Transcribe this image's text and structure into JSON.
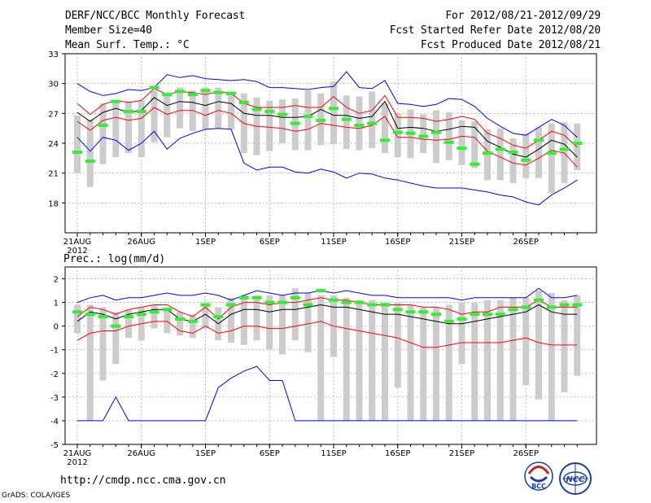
{
  "header": {
    "title": "DERF/NCC/BCC Monthly Forecast",
    "member_size": "Member Size=40",
    "variable": "Mean Surf. Temp.: °C",
    "period": "For 2012/08/21-2012/09/29",
    "refer_date": "Fcst Started Refer Date 2012/08/20",
    "produced_date": "Fcst Produced Date 2012/08/21"
  },
  "precip_label": "Prec.: log(mm/d)",
  "footer": {
    "url": "http://cmdp.ncc.cma.gov.cn",
    "grads": "GrADS: COLA/IGES",
    "logo_bcc": "BCC",
    "logo_ncc": "NCC"
  },
  "colors": {
    "ensemble_mean": "#000000",
    "spread": "#ff0000",
    "envelope": "#0000ff",
    "bar": "#cccccc",
    "marker": "#33ee33"
  },
  "chart_data": [
    {
      "type": "line",
      "title": "Mean Surf. Temp.: °C",
      "x_tick_labels": [
        "21AUG",
        "26AUG",
        "1SEP",
        "6SEP",
        "11SEP",
        "16SEP",
        "21SEP",
        "26SEP"
      ],
      "x_year_label": "2012",
      "ylim": [
        15,
        33
      ],
      "y_ticks": [
        18,
        21,
        24,
        27,
        30,
        33
      ],
      "n_days": 40,
      "series": [
        {
          "name": "max",
          "values": [
            30.0,
            29.2,
            28.8,
            29.0,
            29.4,
            29.3,
            29.6,
            30.9,
            30.6,
            30.8,
            30.5,
            30.4,
            30.3,
            30.4,
            30.2,
            29.6,
            29.6,
            29.5,
            29.4,
            29.6,
            29.7,
            31.2,
            29.6,
            29.5,
            30.3,
            28.0,
            27.9,
            27.7,
            27.9,
            28.5,
            28.4,
            27.7,
            26.5,
            25.7,
            25.0,
            24.8,
            25.6,
            26.4,
            25.8,
            24.6
          ]
        },
        {
          "name": "upper",
          "values": [
            28.0,
            26.9,
            27.9,
            28.3,
            28.1,
            28.3,
            29.5,
            28.9,
            29.2,
            29.1,
            28.9,
            29.2,
            29.0,
            28.0,
            27.6,
            27.6,
            27.6,
            27.8,
            27.6,
            27.6,
            28.7,
            27.6,
            27.0,
            27.3,
            28.8,
            26.6,
            26.6,
            26.5,
            26.2,
            26.4,
            26.7,
            26.4,
            25.0,
            24.5,
            23.8,
            23.5,
            24.3,
            25.2,
            24.8,
            23.6
          ]
        },
        {
          "name": "mean",
          "values": [
            27.1,
            26.2,
            27.1,
            27.5,
            27.1,
            27.3,
            28.6,
            27.8,
            28.2,
            28.1,
            27.8,
            28.2,
            28.0,
            27.0,
            26.8,
            26.8,
            26.6,
            26.6,
            26.7,
            27.4,
            26.8,
            26.8,
            26.5,
            26.7,
            28.2,
            25.5,
            25.6,
            25.5,
            25.2,
            25.4,
            25.7,
            25.6,
            24.2,
            23.6,
            22.9,
            22.6,
            23.4,
            24.3,
            23.9,
            22.6
          ]
        },
        {
          "name": "lower",
          "values": [
            26.2,
            25.3,
            26.3,
            26.6,
            26.3,
            26.5,
            27.6,
            26.9,
            27.3,
            27.3,
            26.8,
            27.3,
            27.0,
            26.0,
            25.7,
            25.6,
            25.5,
            25.2,
            25.4,
            26.0,
            25.8,
            25.6,
            25.5,
            25.8,
            26.7,
            24.6,
            24.6,
            24.4,
            24.3,
            24.4,
            24.7,
            24.6,
            23.2,
            22.6,
            22.0,
            21.8,
            22.5,
            23.3,
            23.0,
            21.6
          ]
        },
        {
          "name": "min",
          "values": [
            24.6,
            23.2,
            24.6,
            24.3,
            23.3,
            24.0,
            25.2,
            23.4,
            24.5,
            25.0,
            25.4,
            25.5,
            25.4,
            22.0,
            21.3,
            21.6,
            21.6,
            21.1,
            21.0,
            21.4,
            21.1,
            20.5,
            21.0,
            20.9,
            20.5,
            20.3,
            20.0,
            19.7,
            19.5,
            19.5,
            19.5,
            19.3,
            19.1,
            18.8,
            18.6,
            18.1,
            17.8,
            18.8,
            19.5,
            20.3
          ]
        }
      ],
      "bars": [
        [
          21.0,
          26.8
        ],
        [
          19.6,
          26.4
        ],
        [
          21.9,
          28.0
        ],
        [
          22.6,
          28.2
        ],
        [
          23.0,
          28.2
        ],
        [
          22.6,
          28.3
        ],
        [
          24.1,
          29.3
        ],
        [
          24.6,
          29.0
        ],
        [
          25.5,
          29.6
        ],
        [
          25.2,
          29.3
        ],
        [
          25.4,
          29.6
        ],
        [
          25.5,
          29.6
        ],
        [
          25.4,
          29.2
        ],
        [
          23.0,
          29.0
        ],
        [
          22.8,
          28.6
        ],
        [
          23.2,
          28.3
        ],
        [
          24.0,
          28.4
        ],
        [
          23.3,
          28.5
        ],
        [
          23.3,
          29.3
        ],
        [
          23.8,
          29.0
        ],
        [
          23.9,
          30.2
        ],
        [
          23.4,
          28.8
        ],
        [
          23.3,
          28.7
        ],
        [
          23.5,
          29.2
        ],
        [
          23.0,
          28.0
        ],
        [
          22.6,
          27.0
        ],
        [
          22.5,
          27.4
        ],
        [
          23.0,
          26.9
        ],
        [
          22.0,
          27.3
        ],
        [
          22.3,
          27.1
        ],
        [
          21.8,
          26.3
        ],
        [
          21.5,
          26.2
        ],
        [
          20.3,
          25.4
        ],
        [
          20.3,
          25.5
        ],
        [
          20.0,
          24.5
        ],
        [
          20.5,
          25.0
        ],
        [
          20.5,
          25.6
        ],
        [
          19.0,
          26.0
        ],
        [
          20.0,
          26.1
        ],
        [
          21.3,
          26.0
        ]
      ],
      "markers": [
        23.1,
        22.2,
        25.8,
        28.2,
        27.2,
        27.2,
        29.6,
        28.9,
        29.2,
        28.9,
        29.3,
        29.1,
        29.0,
        28.1,
        27.4,
        27.2,
        26.9,
        26.0,
        26.7,
        26.3,
        27.5,
        26.4,
        25.8,
        26.0,
        24.3,
        25.1,
        25.0,
        24.7,
        25.1,
        24.1,
        23.5,
        21.9,
        23.0,
        23.4,
        23.1,
        22.3,
        24.3,
        23.0,
        23.4,
        24.0
      ]
    },
    {
      "type": "line",
      "title": "Prec.: log(mm/d)",
      "x_tick_labels": [
        "21AUG",
        "26AUG",
        "1SEP",
        "6SEP",
        "11SEP",
        "16SEP",
        "21SEP",
        "26SEP"
      ],
      "x_year_label": "2012",
      "ylim": [
        -5,
        2.5
      ],
      "y_ticks": [
        -5,
        -4,
        -3,
        -2,
        -1,
        0,
        1,
        2
      ],
      "n_days": 40,
      "series": [
        {
          "name": "max",
          "values": [
            1.0,
            1.2,
            1.3,
            1.1,
            1.2,
            1.2,
            1.3,
            1.4,
            1.3,
            1.3,
            1.4,
            1.3,
            1.1,
            1.3,
            1.5,
            1.4,
            1.3,
            1.4,
            1.4,
            1.5,
            1.4,
            1.5,
            1.4,
            1.3,
            1.3,
            1.2,
            1.2,
            1.2,
            1.2,
            1.2,
            1.1,
            1.2,
            1.2,
            1.2,
            1.2,
            1.2,
            1.6,
            1.2,
            1.2,
            1.3
          ]
        },
        {
          "name": "upper",
          "values": [
            0.4,
            0.8,
            0.7,
            0.5,
            0.7,
            0.8,
            0.9,
            0.9,
            0.6,
            0.4,
            0.8,
            0.3,
            0.8,
            1.0,
            1.0,
            0.9,
            1.0,
            1.0,
            1.1,
            1.2,
            1.1,
            1.1,
            1.0,
            0.9,
            0.9,
            0.9,
            0.9,
            0.8,
            0.8,
            0.7,
            0.5,
            0.6,
            0.6,
            0.8,
            0.8,
            0.8,
            1.1,
            0.8,
            0.8,
            0.8
          ]
        },
        {
          "name": "mean",
          "values": [
            0.2,
            0.6,
            0.5,
            0.3,
            0.5,
            0.6,
            0.7,
            0.7,
            0.3,
            0.2,
            0.5,
            0.1,
            0.5,
            0.7,
            0.7,
            0.6,
            0.7,
            0.7,
            0.8,
            0.9,
            0.8,
            0.8,
            0.7,
            0.6,
            0.5,
            0.5,
            0.4,
            0.3,
            0.2,
            0.1,
            0.1,
            0.2,
            0.3,
            0.4,
            0.5,
            0.6,
            0.9,
            0.6,
            0.5,
            0.5
          ]
        },
        {
          "name": "lower",
          "values": [
            -0.6,
            -0.3,
            -0.2,
            -0.2,
            0.0,
            0.1,
            0.2,
            0.2,
            -0.2,
            -0.3,
            0.0,
            -0.3,
            -0.2,
            0.0,
            0.0,
            -0.1,
            -0.1,
            0.0,
            0.1,
            0.2,
            0.0,
            -0.1,
            -0.2,
            -0.3,
            -0.4,
            -0.5,
            -0.7,
            -0.9,
            -0.9,
            -0.8,
            -0.7,
            -0.7,
            -0.7,
            -0.7,
            -0.6,
            -0.5,
            -0.7,
            -0.8,
            -0.8,
            -0.8
          ]
        },
        {
          "name": "min",
          "values": [
            -4.0,
            -4.0,
            -4.0,
            -3.0,
            -4.0,
            -4.0,
            -4.0,
            -4.0,
            -4.0,
            -4.0,
            -4.0,
            -2.6,
            -2.2,
            -1.9,
            -1.7,
            -2.3,
            -2.3,
            -4.0,
            -4.0,
            -4.0,
            -4.0,
            -4.0,
            -4.0,
            -4.0,
            -4.0,
            -4.0,
            -4.0,
            -4.0,
            -4.0,
            -4.0,
            -4.0,
            -4.0,
            -4.0,
            -4.0,
            -4.0,
            -4.0,
            -4.0,
            -4.0,
            -4.0,
            -4.0
          ]
        }
      ],
      "bars": [
        [
          -0.3,
          0.9
        ],
        [
          -4.0,
          0.9
        ],
        [
          -2.3,
          0.8
        ],
        [
          -1.6,
          0.6
        ],
        [
          -0.5,
          0.7
        ],
        [
          -0.6,
          0.8
        ],
        [
          -0.1,
          0.9
        ],
        [
          -0.3,
          0.8
        ],
        [
          -0.4,
          0.6
        ],
        [
          -0.5,
          0.5
        ],
        [
          -0.1,
          0.9
        ],
        [
          -0.6,
          0.8
        ],
        [
          -0.7,
          1.2
        ],
        [
          -0.8,
          1.3
        ],
        [
          -0.6,
          1.3
        ],
        [
          -1.0,
          1.3
        ],
        [
          -1.2,
          1.3
        ],
        [
          -0.6,
          1.6
        ],
        [
          -1.1,
          1.4
        ],
        [
          -4.0,
          1.3
        ],
        [
          -1.3,
          1.3
        ],
        [
          -4.0,
          1.2
        ],
        [
          -4.0,
          1.1
        ],
        [
          -4.0,
          1.1
        ],
        [
          -4.0,
          1.0
        ],
        [
          -2.6,
          1.0
        ],
        [
          -4.0,
          0.9
        ],
        [
          -4.0,
          0.8
        ],
        [
          -4.0,
          0.8
        ],
        [
          -4.0,
          0.9
        ],
        [
          -1.6,
          1.0
        ],
        [
          -4.0,
          1.0
        ],
        [
          -4.0,
          1.1
        ],
        [
          -4.0,
          1.1
        ],
        [
          -4.0,
          1.2
        ],
        [
          -2.5,
          1.2
        ],
        [
          -3.1,
          1.5
        ],
        [
          -4.0,
          1.4
        ],
        [
          -2.8,
          1.1
        ],
        [
          -2.1,
          1.3
        ]
      ],
      "markers": [
        0.6,
        0.5,
        0.4,
        0.0,
        0.4,
        0.5,
        0.6,
        0.7,
        0.3,
        0.2,
        0.9,
        0.4,
        0.9,
        1.2,
        1.2,
        1.0,
        1.0,
        1.2,
        0.9,
        1.5,
        1.1,
        1.0,
        1.0,
        0.9,
        0.9,
        0.7,
        0.6,
        0.6,
        0.5,
        0.2,
        0.3,
        0.5,
        0.5,
        0.5,
        0.7,
        0.8,
        1.1,
        0.8,
        0.9,
        0.9
      ]
    }
  ]
}
